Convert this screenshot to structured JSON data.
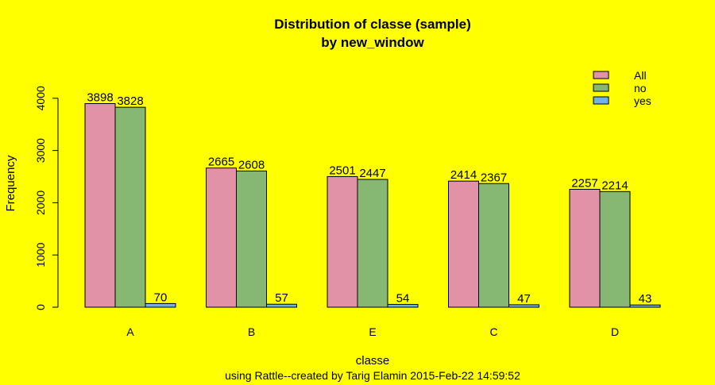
{
  "chart_data": {
    "type": "bar",
    "title_line1": "Distribution of classe (sample)",
    "title_line2": "by new_window",
    "xlabel": "classe",
    "ylabel": "Frequency",
    "subtitle": "using Rattle--created by Tarig Elamin 2015-Feb-22 14:59:52",
    "categories": [
      "A",
      "B",
      "E",
      "C",
      "D"
    ],
    "series": [
      {
        "name": "All",
        "values": [
          3898,
          2665,
          2501,
          2414,
          2257
        ],
        "color": "#e192a6"
      },
      {
        "name": "no",
        "values": [
          3828,
          2608,
          2447,
          2367,
          2214
        ],
        "color": "#87b873"
      },
      {
        "name": "yes",
        "values": [
          70,
          57,
          54,
          47,
          43
        ],
        "color": "#6fb3e6"
      }
    ],
    "yticks": [
      0,
      1000,
      2000,
      3000,
      4000
    ],
    "ylim": [
      0,
      4300
    ],
    "grid": false,
    "legend_position": "top-right",
    "background": "#ffff00"
  }
}
